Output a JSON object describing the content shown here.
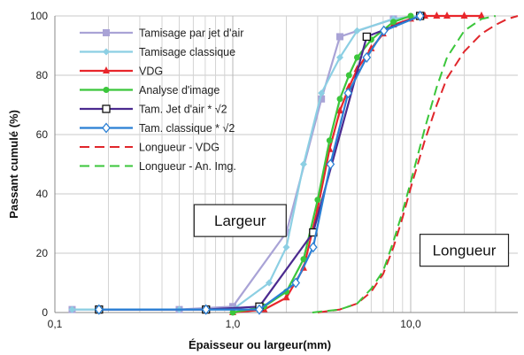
{
  "chart_data": {
    "type": "line",
    "title": "",
    "xlabel": "Épaisseur ou largeur(mm)",
    "ylabel": "Passant cumulé (%)",
    "x_scale": "log",
    "xlim": [
      0.1,
      40
    ],
    "ylim": [
      0,
      100
    ],
    "grid": true,
    "legend_placement": "top-left",
    "x_ticks": [
      {
        "value": 0.1,
        "label": "0,1"
      },
      {
        "value": 1,
        "label": "1,0"
      },
      {
        "value": 10,
        "label": "10,0"
      }
    ],
    "y_ticks": [
      {
        "value": 0,
        "label": "0"
      },
      {
        "value": 20,
        "label": "20"
      },
      {
        "value": 40,
        "label": "40"
      },
      {
        "value": 60,
        "label": "60"
      },
      {
        "value": 80,
        "label": "80"
      },
      {
        "value": 100,
        "label": "100"
      }
    ],
    "annotations": [
      {
        "text": "Largeur",
        "x": 1.1,
        "y": 31
      },
      {
        "text": "Longueur",
        "x": 20,
        "y": 21
      }
    ],
    "series": [
      {
        "name": "Tamisage par jet d'air",
        "color": "#a9a3d6",
        "marker": "square",
        "dash": "solid",
        "x": [
          0.125,
          0.5,
          1.0,
          2.0,
          3.15,
          4.0,
          8.0,
          11.2
        ],
        "y": [
          1,
          1,
          2,
          27,
          72,
          93,
          99,
          100
        ]
      },
      {
        "name": "Tamisage classique",
        "color": "#8ccfe3",
        "marker": "diamond",
        "dash": "solid",
        "x": [
          0.125,
          0.5,
          1.0,
          1.6,
          2.0,
          2.5,
          3.15,
          4.0,
          5.0,
          8.0,
          11.2
        ],
        "y": [
          1,
          1,
          1,
          10,
          22,
          50,
          74,
          86,
          95,
          99,
          100
        ]
      },
      {
        "name": "VDG",
        "color": "#e8262b",
        "marker": "triangle",
        "dash": "solid",
        "x": [
          1.0,
          1.5,
          2.0,
          2.5,
          3.0,
          3.5,
          4.0,
          4.5,
          5.0,
          6.0,
          7.0,
          8.0,
          10.0,
          12.0,
          14.0,
          16.0,
          20.0,
          25.0
        ],
        "y": [
          0,
          1,
          5,
          15,
          35,
          55,
          68,
          76,
          82,
          89,
          94,
          97,
          99,
          100,
          100,
          100,
          100,
          100
        ]
      },
      {
        "name": "Analyse d'image",
        "color": "#3bc63b",
        "marker": "circle",
        "dash": "solid",
        "x": [
          1.0,
          1.5,
          2.0,
          2.5,
          3.0,
          3.5,
          4.0,
          4.5,
          5.0,
          6.0,
          8.0,
          10.0
        ],
        "y": [
          0,
          2,
          7,
          18,
          38,
          58,
          72,
          80,
          86,
          92,
          98,
          100
        ]
      },
      {
        "name": "Tam. Jet d'air * √2",
        "color": "#4b2a8f",
        "marker": "open-square",
        "dash": "solid",
        "x": [
          0.177,
          0.707,
          1.41,
          2.83,
          5.66,
          11.3
        ],
        "y": [
          1,
          1,
          2,
          27,
          93,
          100
        ]
      },
      {
        "name": "Tam. classique * √2",
        "color": "#2a7fd4",
        "marker": "open-diamond",
        "dash": "solid",
        "x": [
          0.177,
          0.707,
          1.41,
          2.26,
          2.83,
          3.54,
          4.45,
          5.66,
          7.07,
          11.3
        ],
        "y": [
          1,
          1,
          1,
          10,
          22,
          50,
          74,
          86,
          95,
          100
        ]
      },
      {
        "name": "Longueur - VDG",
        "color": "#e0262b",
        "marker": "none",
        "dash": "dashed",
        "x": [
          3.0,
          4.0,
          5.0,
          6.0,
          7.0,
          8.0,
          9.0,
          10.0,
          12.0,
          14.0,
          16.0,
          20.0,
          25.0,
          30.0,
          35.0,
          40.0
        ],
        "y": [
          0,
          1,
          3,
          7,
          13,
          22,
          32,
          42,
          58,
          70,
          79,
          88,
          94,
          97,
          99,
          100
        ]
      },
      {
        "name": "Longueur - An. Img.",
        "color": "#3bc63b",
        "marker": "none",
        "dash": "dashed",
        "x": [
          2.8,
          4.0,
          5.0,
          6.0,
          7.0,
          8.0,
          9.0,
          10.0,
          12.0,
          14.0,
          16.0,
          20.0,
          25.0,
          30.0
        ],
        "y": [
          0,
          1,
          3,
          8,
          14,
          24,
          34,
          44,
          62,
          76,
          86,
          95,
          99,
          100
        ]
      }
    ]
  }
}
